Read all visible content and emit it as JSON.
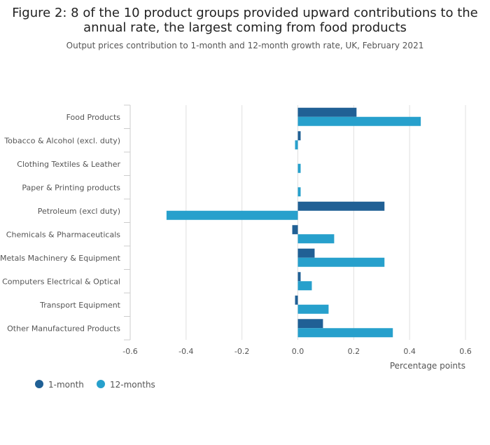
{
  "chart_data": {
    "type": "bar",
    "orientation": "horizontal",
    "title": "Figure 2: 8 of the 10 product groups provided upward contributions to the annual rate, the largest coming from food products",
    "title_lines": [
      "Figure 2: 8 of the 10 product groups provided upward contributions to the",
      "annual rate, the largest coming from food products"
    ],
    "subtitle": "Output prices contribution to 1-month and 12-month growth rate, UK, February 2021",
    "categories": [
      "Food Products",
      "Tobacco & Alcohol (excl. duty)",
      "Clothing Textiles & Leather",
      "Paper & Printing products",
      "Petroleum (excl duty)",
      "Chemicals & Pharmaceuticals",
      "Metals Machinery & Equipment",
      "Computers Electrical & Optical",
      "Transport Equipment",
      "Other Manufactured Products"
    ],
    "series": [
      {
        "name": "1-month",
        "color": "#206095",
        "values": [
          0.21,
          0.01,
          0.0,
          0.0,
          0.31,
          -0.02,
          0.06,
          0.01,
          -0.01,
          0.09
        ]
      },
      {
        "name": "12-months",
        "color": "#27a0cc",
        "values": [
          0.44,
          -0.01,
          0.01,
          0.01,
          -0.47,
          0.13,
          0.31,
          0.05,
          0.11,
          0.34
        ]
      }
    ],
    "xlabel": "Percentage points",
    "ylabel": "",
    "xlim": [
      -0.6,
      0.6
    ],
    "xticks": [
      -0.6,
      -0.4,
      -0.2,
      0.0,
      0.2,
      0.4,
      0.6
    ],
    "xtick_labels": [
      "-0.6",
      "-0.4",
      "-0.2",
      "0.0",
      "0.2",
      "0.4",
      "0.6"
    ],
    "grid": true,
    "legend_position": "bottom-left"
  }
}
